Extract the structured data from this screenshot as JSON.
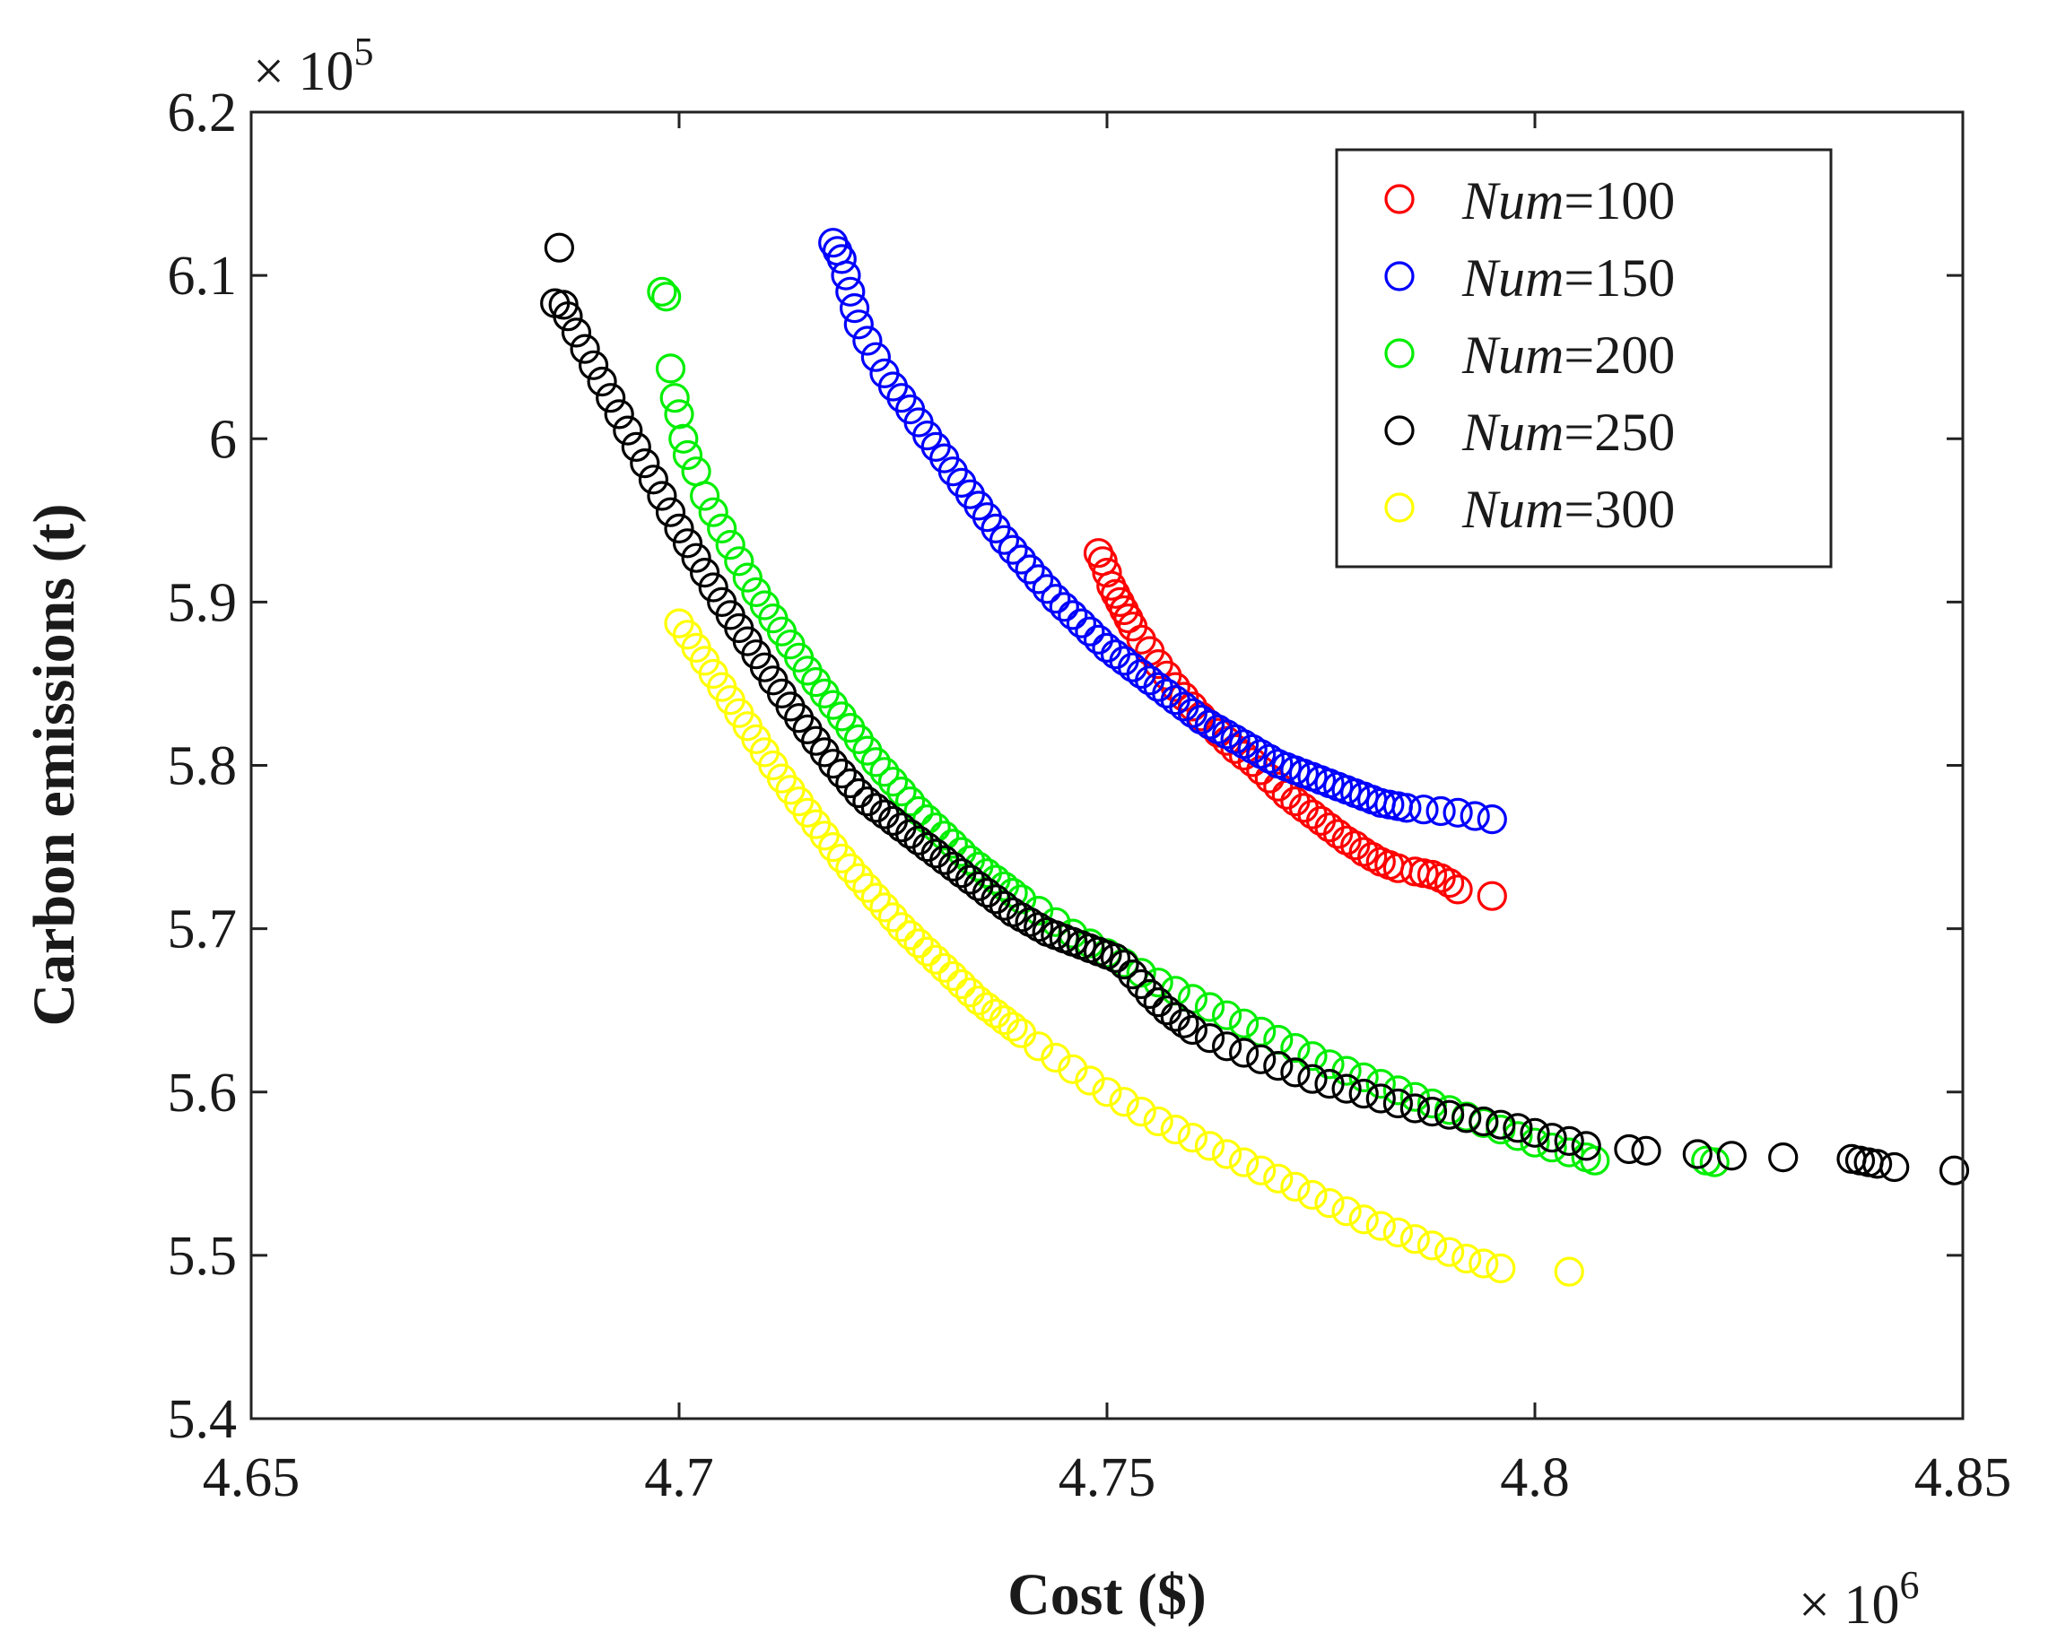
{
  "chart_data": {
    "type": "scatter",
    "title": "",
    "xlabel": "Cost ($)",
    "ylabel": "Carbon emissions (t)",
    "x_multiplier": "× 10",
    "x_multiplier_exp": "6",
    "y_multiplier": "× 10",
    "y_multiplier_exp": "5",
    "xlim": [
      4.65,
      4.85
    ],
    "ylim": [
      5.4,
      6.2
    ],
    "xticks": [
      4.65,
      4.7,
      4.75,
      4.8,
      4.85
    ],
    "xtick_labels": [
      "4.65",
      "4.7",
      "4.75",
      "4.8",
      "4.85"
    ],
    "yticks": [
      5.4,
      5.5,
      5.6,
      5.7,
      5.8,
      5.9,
      6.0,
      6.1,
      6.2
    ],
    "ytick_labels": [
      "5.4",
      "5.5",
      "5.6",
      "5.7",
      "5.8",
      "5.9",
      "6",
      "6.1",
      "6.2"
    ],
    "legend_location": "top-right",
    "marker": "open-circle",
    "series": [
      {
        "name": "Num=100",
        "prefix": "Num",
        "suffix": "=100",
        "color": "#ff0000",
        "x": [
          4.749,
          4.7495,
          4.75,
          4.7505,
          4.751,
          4.7515,
          4.752,
          4.7525,
          4.753,
          4.754,
          4.755,
          4.756,
          4.757,
          4.758,
          4.759,
          4.76,
          4.761,
          4.762,
          4.763,
          4.764,
          4.765,
          4.766,
          4.767,
          4.768,
          4.769,
          4.77,
          4.771,
          4.772,
          4.773,
          4.774,
          4.775,
          4.776,
          4.777,
          4.778,
          4.779,
          4.78,
          4.781,
          4.782,
          4.783,
          4.784,
          4.786,
          4.787,
          4.788,
          4.789,
          4.79,
          4.791,
          4.795
        ],
        "y": [
          5.93,
          5.925,
          5.918,
          5.91,
          5.905,
          5.9,
          5.895,
          5.89,
          5.885,
          5.877,
          5.87,
          5.862,
          5.855,
          5.848,
          5.842,
          5.836,
          5.83,
          5.825,
          5.82,
          5.815,
          5.81,
          5.806,
          5.802,
          5.797,
          5.792,
          5.787,
          5.782,
          5.778,
          5.774,
          5.77,
          5.766,
          5.762,
          5.758,
          5.754,
          5.751,
          5.747,
          5.744,
          5.741,
          5.739,
          5.737,
          5.735,
          5.734,
          5.733,
          5.731,
          5.728,
          5.724,
          5.72
        ]
      },
      {
        "name": "Num=150",
        "prefix": "Num",
        "suffix": "=150",
        "color": "#0000ff",
        "x": [
          4.718,
          4.7185,
          4.719,
          4.7195,
          4.72,
          4.7205,
          4.721,
          4.722,
          4.723,
          4.724,
          4.725,
          4.726,
          4.727,
          4.728,
          4.729,
          4.73,
          4.731,
          4.732,
          4.733,
          4.734,
          4.735,
          4.736,
          4.737,
          4.738,
          4.739,
          4.74,
          4.741,
          4.742,
          4.743,
          4.744,
          4.745,
          4.746,
          4.747,
          4.748,
          4.749,
          4.75,
          4.751,
          4.752,
          4.753,
          4.754,
          4.755,
          4.756,
          4.757,
          4.758,
          4.759,
          4.76,
          4.761,
          4.762,
          4.763,
          4.764,
          4.765,
          4.766,
          4.767,
          4.768,
          4.769,
          4.77,
          4.771,
          4.772,
          4.773,
          4.774,
          4.775,
          4.776,
          4.777,
          4.778,
          4.779,
          4.78,
          4.781,
          4.782,
          4.783,
          4.784,
          4.785,
          4.787,
          4.789,
          4.791,
          4.793,
          4.795
        ],
        "y": [
          6.12,
          6.115,
          6.11,
          6.1,
          6.09,
          6.08,
          6.07,
          6.06,
          6.05,
          6.04,
          6.032,
          6.025,
          6.018,
          6.01,
          6.002,
          5.995,
          5.988,
          5.98,
          5.973,
          5.966,
          5.959,
          5.952,
          5.945,
          5.938,
          5.932,
          5.926,
          5.92,
          5.914,
          5.908,
          5.902,
          5.897,
          5.892,
          5.887,
          5.882,
          5.877,
          5.872,
          5.868,
          5.864,
          5.86,
          5.856,
          5.852,
          5.848,
          5.844,
          5.84,
          5.836,
          5.832,
          5.828,
          5.825,
          5.822,
          5.819,
          5.816,
          5.813,
          5.81,
          5.807,
          5.804,
          5.801,
          5.799,
          5.797,
          5.795,
          5.793,
          5.791,
          5.789,
          5.787,
          5.785,
          5.783,
          5.781,
          5.779,
          5.777,
          5.776,
          5.775,
          5.774,
          5.773,
          5.772,
          5.771,
          5.769,
          5.767
        ]
      },
      {
        "name": "Num=200",
        "prefix": "Num",
        "suffix": "=200",
        "color": "#00ee00",
        "x": [
          4.698,
          4.6985,
          4.699,
          4.6995,
          4.7,
          4.7005,
          4.701,
          4.702,
          4.703,
          4.704,
          4.705,
          4.706,
          4.707,
          4.708,
          4.709,
          4.71,
          4.711,
          4.712,
          4.713,
          4.714,
          4.715,
          4.716,
          4.717,
          4.718,
          4.719,
          4.72,
          4.721,
          4.722,
          4.723,
          4.724,
          4.725,
          4.726,
          4.727,
          4.728,
          4.729,
          4.73,
          4.731,
          4.732,
          4.733,
          4.734,
          4.735,
          4.736,
          4.737,
          4.738,
          4.739,
          4.74,
          4.742,
          4.744,
          4.746,
          4.748,
          4.75,
          4.752,
          4.754,
          4.756,
          4.758,
          4.76,
          4.762,
          4.764,
          4.766,
          4.768,
          4.77,
          4.772,
          4.774,
          4.776,
          4.778,
          4.78,
          4.782,
          4.784,
          4.786,
          4.788,
          4.79,
          4.792,
          4.794,
          4.796,
          4.798,
          4.8,
          4.802,
          4.804,
          4.806,
          4.807,
          4.82,
          4.821
        ],
        "y": [
          6.09,
          6.087,
          6.043,
          6.025,
          6.015,
          6.0,
          5.99,
          5.98,
          5.965,
          5.955,
          5.945,
          5.935,
          5.925,
          5.915,
          5.906,
          5.898,
          5.89,
          5.882,
          5.874,
          5.866,
          5.858,
          5.851,
          5.844,
          5.837,
          5.83,
          5.823,
          5.816,
          5.809,
          5.802,
          5.796,
          5.79,
          5.784,
          5.778,
          5.772,
          5.767,
          5.762,
          5.757,
          5.752,
          5.747,
          5.742,
          5.738,
          5.734,
          5.73,
          5.726,
          5.722,
          5.718,
          5.711,
          5.704,
          5.697,
          5.691,
          5.685,
          5.679,
          5.673,
          5.667,
          5.662,
          5.657,
          5.652,
          5.647,
          5.642,
          5.637,
          5.632,
          5.627,
          5.622,
          5.617,
          5.613,
          5.609,
          5.605,
          5.601,
          5.597,
          5.593,
          5.589,
          5.585,
          5.581,
          5.577,
          5.573,
          5.569,
          5.566,
          5.563,
          5.56,
          5.558,
          5.558,
          5.557
        ]
      },
      {
        "name": "Num=250",
        "prefix": "Num",
        "suffix": "=250",
        "color": "#000000",
        "x": [
          4.686,
          4.6855,
          4.6865,
          4.687,
          4.688,
          4.689,
          4.69,
          4.691,
          4.692,
          4.693,
          4.694,
          4.695,
          4.696,
          4.697,
          4.698,
          4.699,
          4.7,
          4.701,
          4.702,
          4.703,
          4.704,
          4.705,
          4.706,
          4.707,
          4.708,
          4.709,
          4.71,
          4.711,
          4.712,
          4.713,
          4.714,
          4.715,
          4.716,
          4.717,
          4.718,
          4.719,
          4.72,
          4.721,
          4.722,
          4.723,
          4.724,
          4.725,
          4.726,
          4.727,
          4.728,
          4.729,
          4.73,
          4.731,
          4.732,
          4.733,
          4.734,
          4.735,
          4.736,
          4.737,
          4.738,
          4.739,
          4.74,
          4.741,
          4.742,
          4.743,
          4.744,
          4.745,
          4.746,
          4.747,
          4.748,
          4.749,
          4.75,
          4.751,
          4.752,
          4.753,
          4.754,
          4.755,
          4.756,
          4.757,
          4.758,
          4.759,
          4.76,
          4.762,
          4.764,
          4.766,
          4.768,
          4.77,
          4.772,
          4.774,
          4.776,
          4.778,
          4.78,
          4.782,
          4.784,
          4.786,
          4.788,
          4.79,
          4.792,
          4.794,
          4.796,
          4.798,
          4.8,
          4.802,
          4.804,
          4.806,
          4.811,
          4.813,
          4.819,
          4.823,
          4.829,
          4.837,
          4.838,
          4.839,
          4.84,
          4.842,
          4.849
        ],
        "y": [
          6.117,
          6.083,
          6.082,
          6.075,
          6.065,
          6.055,
          6.045,
          6.035,
          6.025,
          6.015,
          6.005,
          5.995,
          5.985,
          5.975,
          5.965,
          5.955,
          5.945,
          5.936,
          5.927,
          5.918,
          5.909,
          5.9,
          5.892,
          5.884,
          5.876,
          5.868,
          5.86,
          5.852,
          5.844,
          5.836,
          5.829,
          5.822,
          5.815,
          5.808,
          5.801,
          5.795,
          5.789,
          5.783,
          5.778,
          5.774,
          5.77,
          5.766,
          5.762,
          5.758,
          5.754,
          5.75,
          5.746,
          5.742,
          5.738,
          5.734,
          5.73,
          5.726,
          5.722,
          5.718,
          5.714,
          5.71,
          5.707,
          5.704,
          5.701,
          5.698,
          5.696,
          5.694,
          5.692,
          5.69,
          5.688,
          5.686,
          5.684,
          5.682,
          5.678,
          5.672,
          5.666,
          5.66,
          5.655,
          5.65,
          5.646,
          5.642,
          5.638,
          5.633,
          5.628,
          5.624,
          5.62,
          5.616,
          5.612,
          5.608,
          5.605,
          5.602,
          5.599,
          5.596,
          5.593,
          5.59,
          5.588,
          5.586,
          5.584,
          5.582,
          5.58,
          5.578,
          5.575,
          5.572,
          5.57,
          5.567,
          5.565,
          5.564,
          5.562,
          5.561,
          5.56,
          5.559,
          5.558,
          5.557,
          5.556,
          5.554,
          5.552
        ]
      },
      {
        "name": "Num=300",
        "prefix": "Num",
        "suffix": "=300",
        "color": "#ffff00",
        "x": [
          4.7,
          4.701,
          4.702,
          4.703,
          4.704,
          4.705,
          4.706,
          4.707,
          4.708,
          4.709,
          4.71,
          4.711,
          4.712,
          4.713,
          4.714,
          4.715,
          4.716,
          4.717,
          4.718,
          4.719,
          4.72,
          4.721,
          4.722,
          4.723,
          4.724,
          4.725,
          4.726,
          4.727,
          4.728,
          4.729,
          4.73,
          4.731,
          4.732,
          4.733,
          4.734,
          4.735,
          4.736,
          4.737,
          4.738,
          4.739,
          4.74,
          4.742,
          4.744,
          4.746,
          4.748,
          4.75,
          4.752,
          4.754,
          4.756,
          4.758,
          4.76,
          4.762,
          4.764,
          4.766,
          4.768,
          4.77,
          4.772,
          4.774,
          4.776,
          4.778,
          4.78,
          4.782,
          4.784,
          4.786,
          4.788,
          4.79,
          4.792,
          4.794,
          4.796,
          4.804
        ],
        "y": [
          5.887,
          5.88,
          5.872,
          5.864,
          5.856,
          5.848,
          5.84,
          5.832,
          5.824,
          5.816,
          5.808,
          5.8,
          5.792,
          5.785,
          5.778,
          5.771,
          5.764,
          5.757,
          5.75,
          5.743,
          5.737,
          5.731,
          5.725,
          5.719,
          5.713,
          5.707,
          5.701,
          5.696,
          5.691,
          5.686,
          5.681,
          5.676,
          5.671,
          5.666,
          5.661,
          5.656,
          5.652,
          5.648,
          5.644,
          5.64,
          5.636,
          5.628,
          5.621,
          5.614,
          5.607,
          5.6,
          5.594,
          5.588,
          5.582,
          5.577,
          5.572,
          5.567,
          5.562,
          5.557,
          5.552,
          5.547,
          5.542,
          5.537,
          5.532,
          5.527,
          5.522,
          5.518,
          5.514,
          5.51,
          5.506,
          5.502,
          5.498,
          5.495,
          5.492,
          5.49
        ]
      }
    ]
  }
}
